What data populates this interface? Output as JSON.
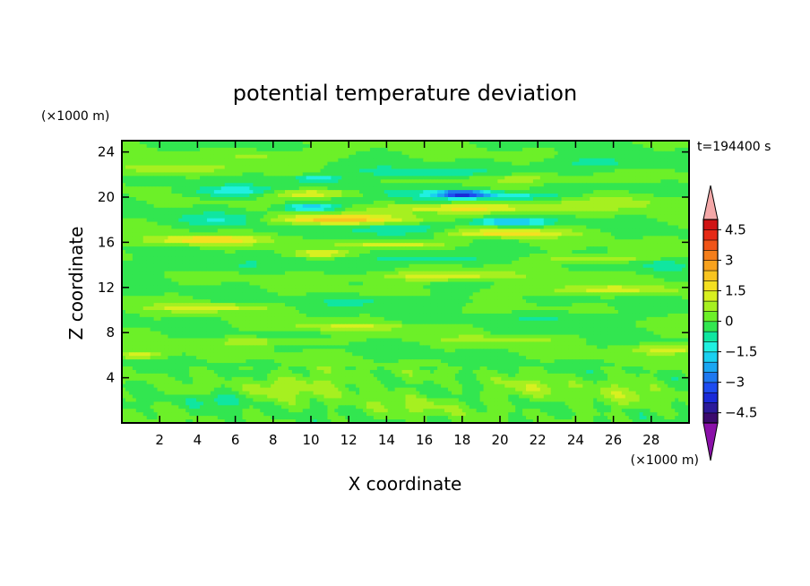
{
  "chart_data": {
    "type": "heatmap",
    "title": "potential temperature deviation",
    "xlabel": "X coordinate",
    "ylabel": "Z coordinate",
    "x_unit": "(×1000 m)",
    "y_unit": "(×1000 m)",
    "time_label": "t=194400 s",
    "xlim": [
      0,
      30
    ],
    "ylim": [
      0,
      25
    ],
    "x_ticks": [
      2,
      4,
      6,
      8,
      10,
      12,
      14,
      16,
      18,
      20,
      22,
      24,
      26,
      28
    ],
    "y_ticks": [
      4,
      8,
      12,
      16,
      20,
      24
    ],
    "colorbar": {
      "levels": [
        -5,
        -4.5,
        -4,
        -3.5,
        -3,
        -2.5,
        -2,
        -1.5,
        -1,
        -0.5,
        0,
        0.5,
        1,
        1.5,
        2,
        2.5,
        3,
        3.5,
        4,
        4.5,
        5
      ],
      "tick_labels": [
        "4.5",
        "3",
        "1.5",
        "0",
        "−1.5",
        "−3",
        "−4.5"
      ],
      "tick_values": [
        4.5,
        3,
        1.5,
        0,
        -1.5,
        -3,
        -4.5
      ],
      "colors": [
        "#3b0a6e",
        "#2b1a9a",
        "#1a2ad8",
        "#1e4cf0",
        "#1e78f0",
        "#1aa6f2",
        "#1ad0f0",
        "#20f0e0",
        "#10e6a0",
        "#32e650",
        "#6cf028",
        "#a6f020",
        "#d8f020",
        "#f4e020",
        "#f8c420",
        "#f8a21e",
        "#f47e1a",
        "#f05418",
        "#e62a16",
        "#d01414"
      ],
      "over_color": "#f4a8a8",
      "under_color": "#8a10a8"
    },
    "features": [
      {
        "x": 2.0,
        "z": 22.5,
        "v": 0.9,
        "rx": 3.5,
        "rz": 0.5
      },
      {
        "x": 8.0,
        "z": 23.7,
        "v": 0.7,
        "rx": 3.0,
        "rz": 0.45
      },
      {
        "x": 15.5,
        "z": 22.2,
        "v": -0.7,
        "rx": 4.5,
        "rz": 0.6
      },
      {
        "x": 25.0,
        "z": 23.0,
        "v": -0.7,
        "rx": 3.0,
        "rz": 0.6
      },
      {
        "x": 21.0,
        "z": 21.6,
        "v": 0.8,
        "rx": 3.5,
        "rz": 0.4
      },
      {
        "x": 6.0,
        "z": 20.5,
        "v": -1.3,
        "rx": 2.5,
        "rz": 0.5
      },
      {
        "x": 10.0,
        "z": 20.3,
        "v": 1.6,
        "rx": 2.5,
        "rz": 0.35
      },
      {
        "x": 10.3,
        "z": 21.6,
        "v": -1.6,
        "rx": 1.2,
        "rz": 0.3
      },
      {
        "x": 15.0,
        "z": 20.5,
        "v": -0.8,
        "rx": 2.5,
        "rz": 0.6
      },
      {
        "x": 18.0,
        "z": 20.3,
        "v": -3.3,
        "rx": 1.3,
        "rz": 0.3
      },
      {
        "x": 20.0,
        "z": 20.1,
        "v": -1.5,
        "rx": 3.5,
        "rz": 0.4
      },
      {
        "x": 26.0,
        "z": 19.5,
        "v": 0.7,
        "rx": 4.0,
        "rz": 0.7
      },
      {
        "x": 10.0,
        "z": 19.1,
        "v": -2.0,
        "rx": 1.5,
        "rz": 0.35
      },
      {
        "x": 18.0,
        "z": 19.0,
        "v": 1.8,
        "rx": 4.0,
        "rz": 0.4
      },
      {
        "x": 20.5,
        "z": 17.8,
        "v": -2.4,
        "rx": 2.0,
        "rz": 0.3
      },
      {
        "x": 11.0,
        "z": 18.0,
        "v": 2.4,
        "rx": 4.0,
        "rz": 0.45
      },
      {
        "x": 6.0,
        "z": 18.0,
        "v": -1.2,
        "rx": 3.0,
        "rz": 0.6
      },
      {
        "x": 14.5,
        "z": 17.2,
        "v": -1.0,
        "rx": 3.0,
        "rz": 0.5
      },
      {
        "x": 20.5,
        "z": 16.8,
        "v": 1.9,
        "rx": 3.0,
        "rz": 0.35
      },
      {
        "x": 4.5,
        "z": 16.2,
        "v": 2.0,
        "rx": 3.0,
        "rz": 0.4
      },
      {
        "x": 14.5,
        "z": 15.8,
        "v": 1.6,
        "rx": 2.5,
        "rz": 0.3
      },
      {
        "x": 10.5,
        "z": 15.0,
        "v": 1.5,
        "rx": 1.5,
        "rz": 0.3
      },
      {
        "x": 16.0,
        "z": 14.6,
        "v": -0.8,
        "rx": 4.0,
        "rz": 0.5
      },
      {
        "x": 25.0,
        "z": 14.6,
        "v": 1.1,
        "rx": 3.0,
        "rz": 0.35
      },
      {
        "x": 4.0,
        "z": 14.0,
        "v": -0.6,
        "rx": 4.0,
        "rz": 0.5
      },
      {
        "x": 17.0,
        "z": 13.0,
        "v": 1.5,
        "rx": 3.5,
        "rz": 0.4
      },
      {
        "x": 28.5,
        "z": 14.0,
        "v": -0.7,
        "rx": 1.5,
        "rz": 0.6
      },
      {
        "x": 25.5,
        "z": 11.8,
        "v": 1.2,
        "rx": 4.0,
        "rz": 0.4
      },
      {
        "x": 4.5,
        "z": 10.2,
        "v": 1.3,
        "rx": 3.0,
        "rz": 0.35
      },
      {
        "x": 14.0,
        "z": 10.7,
        "v": -0.6,
        "rx": 4.0,
        "rz": 0.5
      },
      {
        "x": 12.0,
        "z": 8.5,
        "v": 1.0,
        "rx": 3.5,
        "rz": 0.3
      },
      {
        "x": 23.0,
        "z": 9.3,
        "v": -0.6,
        "rx": 3.0,
        "rz": 0.5
      },
      {
        "x": 20.0,
        "z": 7.4,
        "v": 0.9,
        "rx": 3.0,
        "rz": 0.3
      },
      {
        "x": 7.5,
        "z": 7.2,
        "v": 0.8,
        "rx": 3.0,
        "rz": 0.3
      },
      {
        "x": 29.0,
        "z": 6.5,
        "v": 1.3,
        "rx": 2.0,
        "rz": 0.4
      },
      {
        "x": 1.0,
        "z": 6.0,
        "v": 1.5,
        "rx": 1.2,
        "rz": 0.3
      },
      {
        "x": 8.0,
        "z": 3.2,
        "v": 0.7,
        "rx": 1.5,
        "rz": 1.0
      },
      {
        "x": 11.0,
        "z": 3.3,
        "v": 0.7,
        "rx": 1.8,
        "rz": 1.2
      },
      {
        "x": 22.0,
        "z": 3.0,
        "v": 0.7,
        "rx": 2.0,
        "rz": 1.0
      },
      {
        "x": 27.0,
        "z": 2.5,
        "v": 0.6,
        "rx": 2.0,
        "rz": 1.2
      },
      {
        "x": 5.0,
        "z": 2.0,
        "v": -0.6,
        "rx": 1.5,
        "rz": 0.6
      },
      {
        "x": 16.0,
        "z": 1.5,
        "v": 0.6,
        "rx": 2.0,
        "rz": 0.9
      }
    ]
  }
}
